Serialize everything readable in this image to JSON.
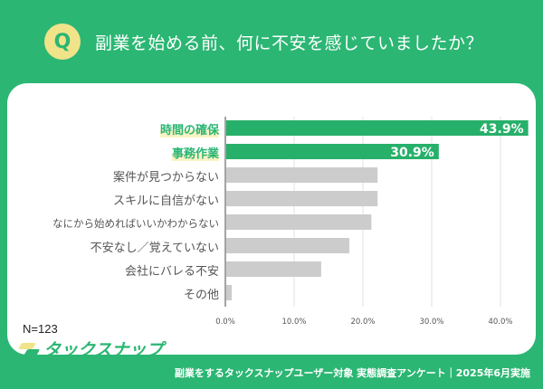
{
  "header": {
    "badge": "Q",
    "title": "副業を始める前、何に不安を感じていましたか？"
  },
  "colors": {
    "background": "#2bb673",
    "highlight_bar": "#27b06a",
    "normal_bar": "#cccccc",
    "badge": "#f1e38a"
  },
  "chart_data": {
    "type": "bar",
    "orientation": "horizontal",
    "title": "副業を始める前、何に不安を感じていましたか？",
    "categories": [
      "時間の確保",
      "事務作業",
      "案件が見つからない",
      "スキルに自信がない",
      "なにから始めればいいかわからない",
      "不安なし／覚えていない",
      "会社にバレる不安",
      "その他"
    ],
    "values": [
      43.9,
      30.9,
      22.0,
      22.0,
      21.1,
      17.9,
      13.8,
      0.8
    ],
    "highlighted": [
      true,
      true,
      false,
      false,
      false,
      false,
      false,
      false
    ],
    "data_labels": [
      "43.9%",
      "30.9%",
      "",
      "",
      "",
      "",
      "",
      ""
    ],
    "xlim": [
      0,
      45
    ],
    "xticks": [
      0,
      10,
      20,
      30,
      40
    ],
    "xtick_labels": [
      "0.0%",
      "10.0%",
      "20.0%",
      "30.0%",
      "40.0%"
    ],
    "grid": true,
    "xlabel": "",
    "ylabel": ""
  },
  "sample": "N=123",
  "logo_text": "タックスナップ",
  "footer": "副業をするタックスナップユーザー対象 実態調査アンケート｜2025年6月実施"
}
